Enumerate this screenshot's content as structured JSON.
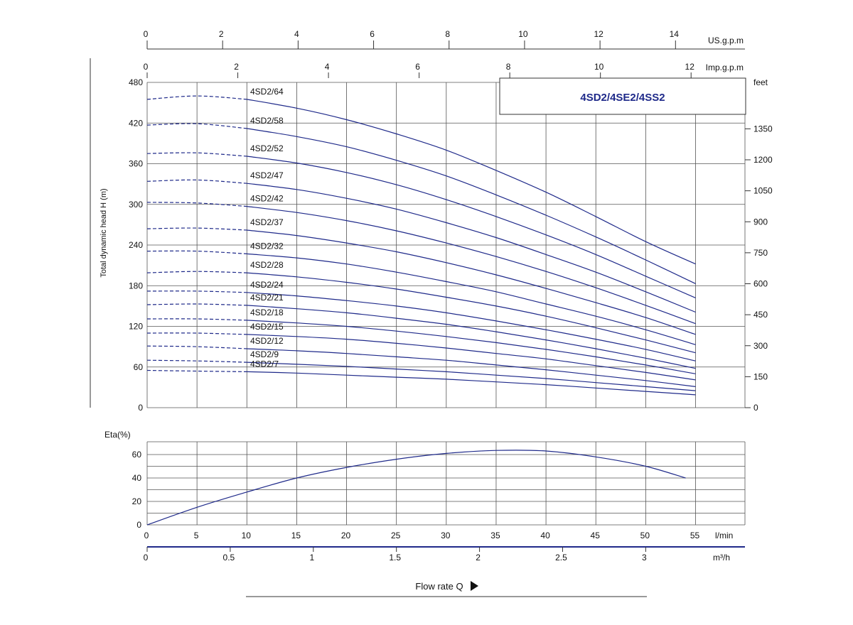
{
  "chart_data": [
    {
      "type": "line",
      "title": "4SD2/4SE2/4SS2",
      "xlabel": "",
      "ylabel": "Total dynamic head H (m)",
      "xlim": [
        0,
        55
      ],
      "ylim": [
        0,
        480
      ],
      "x_unit": "l/min",
      "y_ticks": [
        0,
        60,
        120,
        180,
        240,
        300,
        360,
        420,
        480
      ],
      "grid": true,
      "x_solid_from": 10,
      "x_max": 55,
      "series": [
        {
          "name": "4SD2/64",
          "values": [
            [
              0,
              455
            ],
            [
              5,
              460
            ],
            [
              10,
              455
            ],
            [
              15,
              442
            ],
            [
              20,
              425
            ],
            [
              25,
              404
            ],
            [
              30,
              380
            ],
            [
              35,
              350
            ],
            [
              40,
              318
            ],
            [
              45,
              282
            ],
            [
              50,
              245
            ],
            [
              55,
              212
            ]
          ]
        },
        {
          "name": "4SD2/58",
          "values": [
            [
              0,
              417
            ],
            [
              5,
              419
            ],
            [
              10,
              412
            ],
            [
              15,
              400
            ],
            [
              20,
              385
            ],
            [
              25,
              365
            ],
            [
              30,
              342
            ],
            [
              35,
              314
            ],
            [
              40,
              284
            ],
            [
              45,
              252
            ],
            [
              50,
              218
            ],
            [
              55,
              183
            ]
          ]
        },
        {
          "name": "4SD2/52",
          "values": [
            [
              0,
              375
            ],
            [
              5,
              376
            ],
            [
              10,
              371
            ],
            [
              15,
              361
            ],
            [
              20,
              347
            ],
            [
              25,
              329
            ],
            [
              30,
              307
            ],
            [
              35,
              282
            ],
            [
              40,
              255
            ],
            [
              45,
              226
            ],
            [
              50,
              194
            ],
            [
              55,
              162
            ]
          ]
        },
        {
          "name": "4SD2/47",
          "values": [
            [
              0,
              334
            ],
            [
              5,
              336
            ],
            [
              10,
              331
            ],
            [
              15,
              322
            ],
            [
              20,
              309
            ],
            [
              25,
              293
            ],
            [
              30,
              273
            ],
            [
              35,
              251
            ],
            [
              40,
              226
            ],
            [
              45,
              200
            ],
            [
              50,
              171
            ],
            [
              55,
              141
            ]
          ]
        },
        {
          "name": "4SD2/42",
          "values": [
            [
              0,
              303
            ],
            [
              5,
              302
            ],
            [
              10,
              297
            ],
            [
              15,
              288
            ],
            [
              20,
              276
            ],
            [
              25,
              261
            ],
            [
              30,
              243
            ],
            [
              35,
              223
            ],
            [
              40,
              201
            ],
            [
              45,
              177
            ],
            [
              50,
              151
            ],
            [
              55,
              124
            ]
          ]
        },
        {
          "name": "4SD2/37",
          "values": [
            [
              0,
              264
            ],
            [
              5,
              265
            ],
            [
              10,
              262
            ],
            [
              15,
              254
            ],
            [
              20,
              243
            ],
            [
              25,
              230
            ],
            [
              30,
              214
            ],
            [
              35,
              196
            ],
            [
              40,
              176
            ],
            [
              45,
              155
            ],
            [
              50,
              133
            ],
            [
              55,
              108
            ]
          ]
        },
        {
          "name": "4SD2/32",
          "values": [
            [
              0,
              231
            ],
            [
              5,
              231
            ],
            [
              10,
              227
            ],
            [
              15,
              221
            ],
            [
              20,
              212
            ],
            [
              25,
              200
            ],
            [
              30,
              186
            ],
            [
              35,
              171
            ],
            [
              40,
              153
            ],
            [
              45,
              135
            ],
            [
              50,
              115
            ],
            [
              55,
              93
            ]
          ]
        },
        {
          "name": "4SD2/28",
          "values": [
            [
              0,
              199
            ],
            [
              5,
              201
            ],
            [
              10,
              199
            ],
            [
              15,
              193
            ],
            [
              20,
              185
            ],
            [
              25,
              175
            ],
            [
              30,
              163
            ],
            [
              35,
              150
            ],
            [
              40,
              135
            ],
            [
              45,
              118
            ],
            [
              50,
              100
            ],
            [
              55,
              81
            ]
          ]
        },
        {
          "name": "4SD2/24",
          "values": [
            [
              0,
              172
            ],
            [
              5,
              172
            ],
            [
              10,
              170
            ],
            [
              15,
              165
            ],
            [
              20,
              158
            ],
            [
              25,
              150
            ],
            [
              30,
              140
            ],
            [
              35,
              128
            ],
            [
              40,
              115
            ],
            [
              45,
              101
            ],
            [
              50,
              86
            ],
            [
              55,
              69
            ]
          ]
        },
        {
          "name": "4SD2/21",
          "values": [
            [
              0,
              152
            ],
            [
              5,
              153
            ],
            [
              10,
              151
            ],
            [
              15,
              146
            ],
            [
              20,
              140
            ],
            [
              25,
              132
            ],
            [
              30,
              123
            ],
            [
              35,
              112
            ],
            [
              40,
              100
            ],
            [
              45,
              87
            ],
            [
              50,
              73
            ],
            [
              55,
              58
            ]
          ]
        },
        {
          "name": "4SD2/18",
          "values": [
            [
              0,
              131
            ],
            [
              5,
              131
            ],
            [
              10,
              129
            ],
            [
              15,
              125
            ],
            [
              20,
              120
            ],
            [
              25,
              113
            ],
            [
              30,
              105
            ],
            [
              35,
              96
            ],
            [
              40,
              86
            ],
            [
              45,
              75
            ],
            [
              50,
              63
            ],
            [
              55,
              50
            ]
          ]
        },
        {
          "name": "4SD2/15",
          "values": [
            [
              0,
              110
            ],
            [
              5,
              110
            ],
            [
              10,
              108
            ],
            [
              15,
              105
            ],
            [
              20,
              101
            ],
            [
              25,
              95
            ],
            [
              30,
              88
            ],
            [
              35,
              80
            ],
            [
              40,
              72
            ],
            [
              45,
              62
            ],
            [
              50,
              52
            ],
            [
              55,
              41
            ]
          ]
        },
        {
          "name": "4SD2/12",
          "values": [
            [
              0,
              91
            ],
            [
              5,
              90
            ],
            [
              10,
              87
            ],
            [
              15,
              84
            ],
            [
              20,
              80
            ],
            [
              25,
              75
            ],
            [
              30,
              70
            ],
            [
              35,
              63
            ],
            [
              40,
              56
            ],
            [
              45,
              48
            ],
            [
              50,
              40
            ],
            [
              55,
              31
            ]
          ]
        },
        {
          "name": "4SD2/9",
          "values": [
            [
              0,
              70
            ],
            [
              5,
              69
            ],
            [
              10,
              67
            ],
            [
              15,
              64
            ],
            [
              20,
              61
            ],
            [
              25,
              57
            ],
            [
              30,
              53
            ],
            [
              35,
              48
            ],
            [
              40,
              43
            ],
            [
              45,
              37
            ],
            [
              50,
              31
            ],
            [
              55,
              25
            ]
          ]
        },
        {
          "name": "4SD2/7",
          "values": [
            [
              0,
              55
            ],
            [
              5,
              54
            ],
            [
              10,
              53
            ],
            [
              15,
              51
            ],
            [
              20,
              48
            ],
            [
              25,
              45
            ],
            [
              30,
              42
            ],
            [
              35,
              38
            ],
            [
              40,
              34
            ],
            [
              45,
              29
            ],
            [
              50,
              24
            ],
            [
              55,
              19
            ]
          ]
        }
      ]
    },
    {
      "type": "line",
      "title": "",
      "ylabel": "Eta(%)",
      "xlim": [
        0,
        55
      ],
      "ylim": [
        0,
        70
      ],
      "y_ticks": [
        0,
        20,
        40,
        60
      ],
      "x_ticks": [
        0,
        5,
        10,
        15,
        20,
        25,
        30,
        35,
        40,
        45,
        50,
        55
      ],
      "x_unit": "l/min",
      "grid": true,
      "series": [
        {
          "name": "",
          "values": [
            [
              0,
              0
            ],
            [
              5,
              15
            ],
            [
              10,
              28
            ],
            [
              15,
              40
            ],
            [
              20,
              49
            ],
            [
              25,
              56
            ],
            [
              30,
              61
            ],
            [
              35,
              63.5
            ],
            [
              40,
              63
            ],
            [
              45,
              58
            ],
            [
              50,
              50
            ],
            [
              54,
              40
            ]
          ]
        }
      ]
    }
  ],
  "axes": {
    "us_gpm": {
      "unit": "US.g.p.m",
      "ticks": [
        0,
        2,
        4,
        6,
        8,
        10,
        12,
        14
      ],
      "lpm_per_unit": 3.785
    },
    "imp_gpm": {
      "unit": "Imp.g.p.m",
      "ticks": [
        0,
        2,
        4,
        6,
        8,
        10,
        12
      ],
      "lpm_per_unit": 4.546
    },
    "feet": {
      "unit": "feet",
      "ticks": [
        0,
        150,
        300,
        450,
        600,
        750,
        900,
        1050,
        1200,
        1350
      ],
      "m_per_unit": 0.3048
    },
    "m3h": {
      "unit": "m³/h",
      "ticks": [
        "0",
        "0.5",
        "1",
        "1.5",
        "2",
        "2.5",
        "3"
      ],
      "lpm_per_unit": 16.667
    },
    "flow_label": "Flow rate Q"
  },
  "colors": {
    "curve": "#1f2a8a",
    "grid": "#555555",
    "axis": "#1f2a8a"
  }
}
